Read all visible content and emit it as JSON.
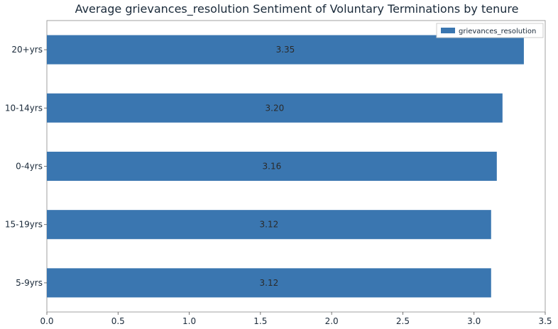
{
  "chart_data": {
    "type": "bar",
    "orientation": "horizontal",
    "title": "Average grievances_resolution Sentiment of Voluntary Terminations by tenure",
    "xlabel": "",
    "ylabel": "",
    "categories": [
      "20+yrs",
      "10-14yrs",
      "0-4yrs",
      "15-19yrs",
      "5-9yrs"
    ],
    "series": [
      {
        "name": "grievances_resolution",
        "values": [
          3.35,
          3.2,
          3.16,
          3.12,
          3.12
        ],
        "labels": [
          "3.35",
          "3.20",
          "3.16",
          "3.12",
          "3.12"
        ],
        "color": "#3a76b0"
      }
    ],
    "xlim": [
      0,
      3.5
    ],
    "xticks": [
      0.0,
      0.5,
      1.0,
      1.5,
      2.0,
      2.5,
      3.0,
      3.5
    ],
    "xtick_labels": [
      "0.0",
      "0.5",
      "1.0",
      "1.5",
      "2.0",
      "2.5",
      "3.0",
      "3.5"
    ],
    "legend_position": "top-right",
    "grid": false
  }
}
